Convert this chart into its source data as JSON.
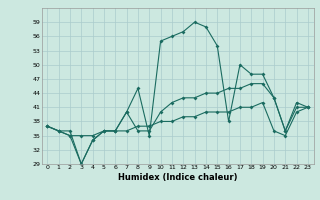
{
  "xlabel": "Humidex (Indice chaleur)",
  "background_color": "#cce8e0",
  "grid_color": "#aacccc",
  "line_color": "#1a6b60",
  "x": [
    0,
    1,
    2,
    3,
    4,
    5,
    6,
    7,
    8,
    9,
    10,
    11,
    12,
    13,
    14,
    15,
    16,
    17,
    18,
    19,
    20,
    21,
    22,
    23
  ],
  "series1": [
    37,
    36,
    36,
    29,
    34,
    36,
    36,
    40,
    45,
    35,
    55,
    56,
    57,
    59,
    58,
    54,
    38,
    50,
    48,
    48,
    43,
    36,
    42,
    41
  ],
  "series2": [
    37,
    36,
    35,
    29,
    34,
    36,
    36,
    40,
    36,
    36,
    40,
    42,
    43,
    43,
    44,
    44,
    45,
    45,
    46,
    46,
    43,
    36,
    41,
    41
  ],
  "series3": [
    37,
    36,
    35,
    35,
    35,
    36,
    36,
    36,
    37,
    37,
    38,
    38,
    39,
    39,
    40,
    40,
    40,
    41,
    41,
    42,
    36,
    35,
    40,
    41
  ],
  "ylim": [
    29,
    62
  ],
  "yticks": [
    29,
    32,
    35,
    38,
    41,
    44,
    47,
    50,
    53,
    56,
    59
  ],
  "xlim": [
    -0.5,
    23.5
  ],
  "figsize": [
    3.2,
    2.0
  ],
  "dpi": 100
}
